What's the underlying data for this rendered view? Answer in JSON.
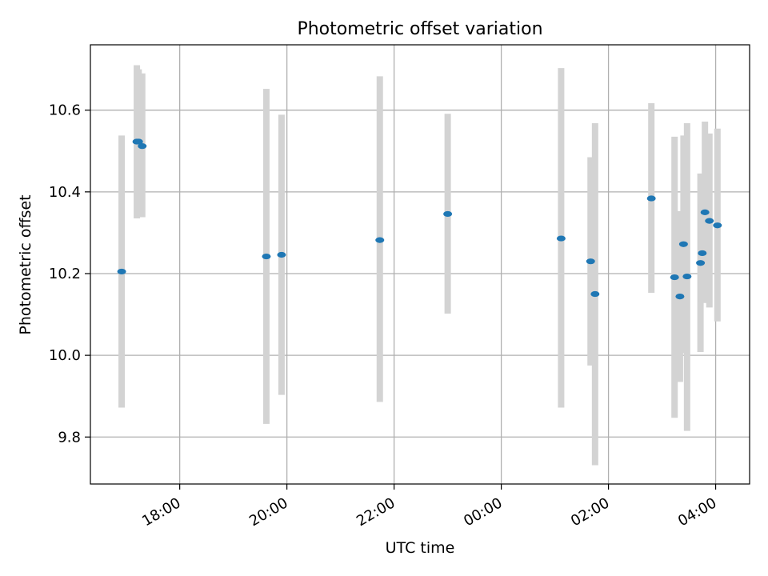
{
  "chart_data": {
    "type": "scatter",
    "title": "Photometric offset variation",
    "xlabel": "UTC time",
    "ylabel": "Photometric offset",
    "grid": true,
    "xlim": [
      "16:20",
      "04:38"
    ],
    "ylim": [
      9.685,
      10.76
    ],
    "xticks": [
      "18:00",
      "20:00",
      "22:00",
      "00:00",
      "02:00",
      "04:00"
    ],
    "yticks": [
      "9.8",
      "10.0",
      "10.2",
      "10.4",
      "10.6"
    ],
    "colors": {
      "marker": "#1f77b4",
      "errorbar": "#d3d3d3",
      "grid": "#b0b0b0"
    },
    "points": [
      {
        "t": "16:55",
        "y": 10.205,
        "lo": 9.872,
        "hi": 10.538
      },
      {
        "t": "17:12",
        "y": 10.523,
        "lo": 10.335,
        "hi": 10.71
      },
      {
        "t": "17:14",
        "y": 10.523,
        "lo": 10.345,
        "hi": 10.7
      },
      {
        "t": "17:18",
        "y": 10.512,
        "lo": 10.338,
        "hi": 10.69
      },
      {
        "t": "19:37",
        "y": 10.242,
        "lo": 9.832,
        "hi": 10.652
      },
      {
        "t": "19:54",
        "y": 10.246,
        "lo": 9.903,
        "hi": 10.589
      },
      {
        "t": "21:44",
        "y": 10.282,
        "lo": 9.886,
        "hi": 10.683
      },
      {
        "t": "23:00",
        "y": 10.346,
        "lo": 10.102,
        "hi": 10.591
      },
      {
        "t": "01:07",
        "y": 10.286,
        "lo": 9.872,
        "hi": 10.703
      },
      {
        "t": "01:40",
        "y": 10.23,
        "lo": 9.975,
        "hi": 10.485
      },
      {
        "t": "01:45",
        "y": 10.15,
        "lo": 9.731,
        "hi": 10.568
      },
      {
        "t": "02:48",
        "y": 10.384,
        "lo": 10.153,
        "hi": 10.617
      },
      {
        "t": "03:14",
        "y": 10.191,
        "lo": 9.847,
        "hi": 10.535
      },
      {
        "t": "03:20",
        "y": 10.144,
        "lo": 9.935,
        "hi": 10.353
      },
      {
        "t": "03:24",
        "y": 10.272,
        "lo": 10.005,
        "hi": 10.538
      },
      {
        "t": "03:28",
        "y": 10.193,
        "lo": 9.815,
        "hi": 10.568
      },
      {
        "t": "03:43",
        "y": 10.226,
        "lo": 10.008,
        "hi": 10.445
      },
      {
        "t": "03:45",
        "y": 10.25,
        "lo": 10.13,
        "hi": 10.37
      },
      {
        "t": "03:48",
        "y": 10.35,
        "lo": 10.128,
        "hi": 10.572
      },
      {
        "t": "03:53",
        "y": 10.329,
        "lo": 10.117,
        "hi": 10.543
      },
      {
        "t": "04:02",
        "y": 10.318,
        "lo": 10.083,
        "hi": 10.555
      }
    ]
  }
}
